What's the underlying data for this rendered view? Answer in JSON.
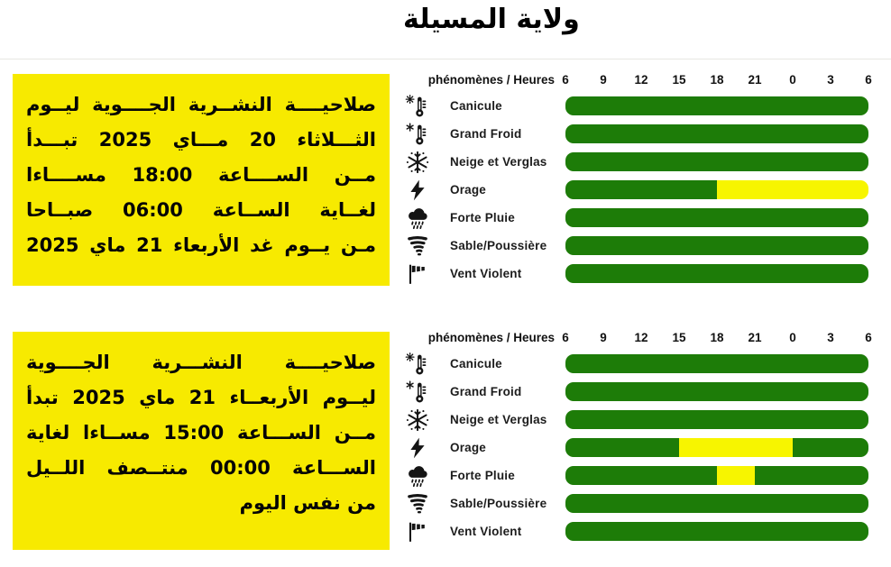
{
  "title": "ولاية المسيلة",
  "colors": {
    "green": "#1d7c08",
    "yellow": "#f7f500",
    "box_yellow": "#f7ea00",
    "text": "#000000"
  },
  "validity_boxes": [
    {
      "lines": [
        "صلاحيــــة النشــرية الجــــوية ليــوم",
        "الثـــلاثاء 20 مـــاي 2025 تبـــدأ",
        "مــن الســــاعة 18:00 مســــاءا",
        "لغــاية الســاعة 06:00 صبــاحا",
        "مـن يــوم غد الأربعاء 21 ماي 2025"
      ],
      "justify_last_line": true
    },
    {
      "lines": [
        "صلاحيــــة النشـــرية الجــــوية",
        "ليــوم الأربعــاء 21 ماي 2025 تبدأ",
        "مــن الســـاعة 15:00 مســاءا لغاية",
        "الســـاعة 00:00 منتــصف اللــيل",
        "من نفس اليوم"
      ],
      "justify_last_line": false
    }
  ],
  "chart_data": [
    {
      "type": "bar",
      "header_label": "phénomènes / Heures",
      "x_ticks": [
        "6",
        "9",
        "12",
        "15",
        "18",
        "21",
        "0",
        "3",
        "6"
      ],
      "x_range_hours": [
        6,
        30
      ],
      "rows": [
        {
          "icon": "thermometer-sun-icon",
          "label": "Canicule",
          "segments": [
            {
              "level": "green",
              "from": 6,
              "to": 30
            }
          ]
        },
        {
          "icon": "thermometer-snowflake-icon",
          "label": "Grand Froid",
          "segments": [
            {
              "level": "green",
              "from": 6,
              "to": 30
            }
          ]
        },
        {
          "icon": "snowflake-icon",
          "label": "Neige et Verglas",
          "segments": [
            {
              "level": "green",
              "from": 6,
              "to": 30
            }
          ]
        },
        {
          "icon": "lightning-icon",
          "label": "Orage",
          "segments": [
            {
              "level": "green",
              "from": 6,
              "to": 18
            },
            {
              "level": "yellow",
              "from": 18,
              "to": 30
            }
          ]
        },
        {
          "icon": "rain-cloud-icon",
          "label": "Forte Pluie",
          "segments": [
            {
              "level": "green",
              "from": 6,
              "to": 30
            }
          ]
        },
        {
          "icon": "tornado-icon",
          "label": "Sable/Poussière",
          "segments": [
            {
              "level": "green",
              "from": 6,
              "to": 30
            }
          ]
        },
        {
          "icon": "windsock-icon",
          "label": "Vent Violent",
          "segments": [
            {
              "level": "green",
              "from": 6,
              "to": 30
            }
          ]
        }
      ]
    },
    {
      "type": "bar",
      "header_label": "phénomènes / Heures",
      "x_ticks": [
        "6",
        "9",
        "12",
        "15",
        "18",
        "21",
        "0",
        "3",
        "6"
      ],
      "x_range_hours": [
        6,
        30
      ],
      "rows": [
        {
          "icon": "thermometer-sun-icon",
          "label": "Canicule",
          "segments": [
            {
              "level": "green",
              "from": 6,
              "to": 30
            }
          ]
        },
        {
          "icon": "thermometer-snowflake-icon",
          "label": "Grand Froid",
          "segments": [
            {
              "level": "green",
              "from": 6,
              "to": 30
            }
          ]
        },
        {
          "icon": "snowflake-icon",
          "label": "Neige et Verglas",
          "segments": [
            {
              "level": "green",
              "from": 6,
              "to": 30
            }
          ]
        },
        {
          "icon": "lightning-icon",
          "label": "Orage",
          "segments": [
            {
              "level": "green",
              "from": 6,
              "to": 15
            },
            {
              "level": "yellow",
              "from": 15,
              "to": 24
            },
            {
              "level": "green",
              "from": 24,
              "to": 30
            }
          ]
        },
        {
          "icon": "rain-cloud-icon",
          "label": "Forte Pluie",
          "segments": [
            {
              "level": "green",
              "from": 6,
              "to": 18
            },
            {
              "level": "yellow",
              "from": 18,
              "to": 21
            },
            {
              "level": "green",
              "from": 21,
              "to": 30
            }
          ]
        },
        {
          "icon": "tornado-icon",
          "label": "Sable/Poussière",
          "segments": [
            {
              "level": "green",
              "from": 6,
              "to": 30
            }
          ]
        },
        {
          "icon": "windsock-icon",
          "label": "Vent Violent",
          "segments": [
            {
              "level": "green",
              "from": 6,
              "to": 30
            }
          ]
        }
      ]
    }
  ]
}
